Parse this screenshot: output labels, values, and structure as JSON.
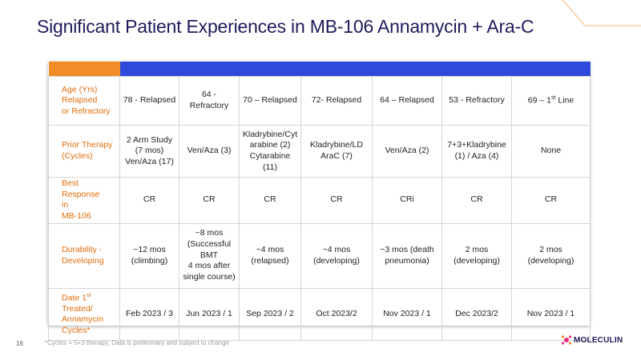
{
  "slide": {
    "title": "Significant Patient Experiences in MB-106 Annamycin + Ara-C",
    "page_number": "16",
    "footnote": "*Cycles = 5+3 therapy; Data is preliminary and subject to change",
    "logo_text": "MOLECULIN"
  },
  "colors": {
    "title": "#1f1b5a",
    "label": "#e36c0a",
    "header_blue": "#3049dd",
    "header_orange": "#f28c28"
  },
  "table": {
    "rows": [
      {
        "label": "Age (Yrs)\nRelapsed\nor Refractory",
        "cells": [
          "78 - Relapsed",
          "64 - Refractory",
          "70 – Relapsed",
          "72- Relapsed",
          "64 – Relapsed",
          "53 - Refractory",
          "69 – 1st Line"
        ]
      },
      {
        "label": "Prior Therapy\n(Cycles)",
        "cells": [
          "2 Arm Study\n(7 mos)\nVen/Aza (17)",
          "Ven/Aza (3)",
          "Kladrybine/Cyt\narabine (2)\nCytarabine (11)",
          "Kladrybine/LD\nAraC (7)",
          "Ven/Aza (2)",
          "7+3+Kladrybine\n(1) / Aza (4)",
          "None"
        ]
      },
      {
        "label": "Best Response\nin\nMB-106",
        "cells": [
          "CR",
          "CR",
          "CR",
          "CR",
          "CRi",
          "CR",
          "CR"
        ]
      },
      {
        "label": "Durability -\nDeveloping",
        "cells": [
          "~12 mos\n(climbing)",
          "~8 mos\n(Successful\nBMT\n4 mos after\nsingle course)",
          "~4 mos\n(relapsed)",
          "~4 mos\n(developing)",
          "~3 mos (death\npneumonia)",
          "2 mos\n(developing)",
          "2 mos\n(developing)"
        ]
      },
      {
        "label": "Date 1st\nTreated/\nAnnamycin\nCycles*",
        "cells": [
          "Feb 2023 / 3",
          "Jun 2023 / 1",
          "Sep 2023 / 2",
          "Oct 2023/2",
          "Nov 2023 / 1",
          "Dec 2023/2",
          "Nov 2023 / 1"
        ]
      }
    ]
  }
}
